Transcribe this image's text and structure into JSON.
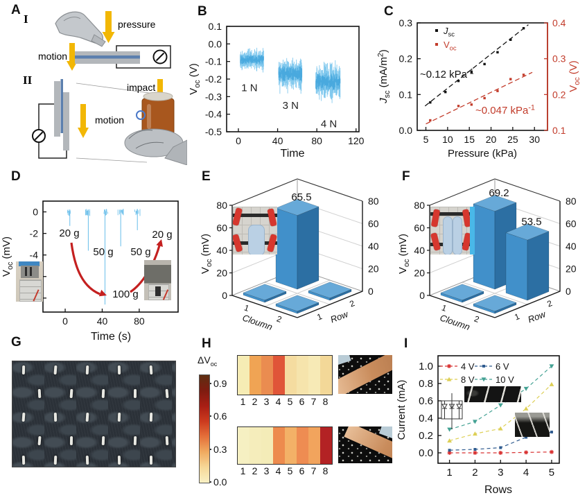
{
  "panels": {
    "A": {
      "letter": "A",
      "roman1": "I",
      "roman2": "II",
      "labels": {
        "pressure": "pressure",
        "motion_top": "motion",
        "motion_bottom": "motion",
        "impact": "impact"
      }
    },
    "B": {
      "letter": "B"
    },
    "C": {
      "letter": "C"
    },
    "D": {
      "letter": "D"
    },
    "E": {
      "letter": "E"
    },
    "F": {
      "letter": "F"
    },
    "G": {
      "letter": "G"
    },
    "H": {
      "letter": "H"
    },
    "I": {
      "letter": "I"
    }
  },
  "chart_data": [
    {
      "id": "B",
      "type": "line",
      "xlabel": "Time",
      "ylabel_parts": [
        {
          "t": "V"
        },
        {
          "t": "oc",
          "sub": true
        },
        {
          "t": " (V)"
        }
      ],
      "xlim": [
        -12,
        123
      ],
      "ylim": [
        0.1,
        -0.5
      ],
      "xticks": [
        "0",
        "40",
        "80",
        "120"
      ],
      "yticks": [
        "0.1",
        "0.0",
        "-0.1",
        "-0.2",
        "-0.3",
        "-0.4",
        "-0.5"
      ],
      "signal_color": "#74c3ec",
      "signal_core_color": "#3fa3da",
      "bursts": [
        {
          "t_start": 2,
          "t_end": 26,
          "mean": -0.09,
          "spread": 0.06,
          "label": "1 N",
          "label_t": 3,
          "label_v": -0.27
        },
        {
          "t_start": 41,
          "t_end": 65,
          "mean": -0.17,
          "spread": 0.1,
          "label": "3 N",
          "label_t": 45,
          "label_v": -0.37
        },
        {
          "t_start": 79,
          "t_end": 104,
          "mean": -0.215,
          "spread": 0.11,
          "label": "4 N",
          "label_t": 84,
          "label_v": -0.475
        }
      ]
    },
    {
      "id": "C",
      "type": "scatter",
      "xlabel": "Pressure (kPa)",
      "ylabel_left_parts": [
        {
          "t": "J",
          "i": true
        },
        {
          "t": "sc",
          "sub": true
        },
        {
          "t": " (mA/m"
        },
        {
          "t": "2",
          "sup": true
        },
        {
          "t": ")"
        }
      ],
      "ylabel_right_parts": [
        {
          "t": "V"
        },
        {
          "t": "oc",
          "sub": true
        },
        {
          "t": " (V)"
        }
      ],
      "right_color": "#c23b2a",
      "xlim": [
        3,
        33
      ],
      "xticks": [
        "5",
        "10",
        "15",
        "20",
        "25",
        "30"
      ],
      "ylim_left": [
        0.3,
        0.0
      ],
      "yticks_left": [
        "0.0",
        "0.1",
        "0.2",
        "0.3"
      ],
      "ylim_right": [
        0.4,
        0.1
      ],
      "yticks_right": [
        "0.1",
        "0.2",
        "0.3",
        "0.4"
      ],
      "legend": [
        {
          "parts": [
            {
              "t": "J",
              "i": true
            },
            {
              "t": "sc",
              "sub": true
            }
          ],
          "color": "#111111"
        },
        {
          "parts": [
            {
              "t": "V"
            },
            {
              "t": "oc",
              "sub": true
            }
          ],
          "color": "#c23b2a"
        }
      ],
      "series": [
        {
          "name": "Jsc",
          "axis": "left",
          "color": "#111111",
          "marker": "square",
          "x": [
            6,
            9.5,
            12.5,
            15.5,
            18.5,
            21.5,
            24.5,
            27.5
          ],
          "y": [
            0.078,
            0.107,
            0.138,
            0.163,
            0.185,
            0.218,
            0.253,
            0.285
          ],
          "fit": [
            [
              4.8,
              0.068
            ],
            [
              28.6,
              0.295
            ]
          ],
          "annotation_parts": [
            {
              "t": "~0.12 kPa"
            },
            {
              "t": "-1",
              "sup": true
            }
          ]
        },
        {
          "name": "Voc",
          "axis": "right",
          "color": "#c23b2a",
          "marker": "square",
          "x": [
            6,
            12.5,
            15.5,
            18.5,
            21.5,
            24.5,
            27.5
          ],
          "y": [
            0.128,
            0.168,
            0.172,
            0.19,
            0.21,
            0.243,
            0.255
          ],
          "fit": [
            [
              5,
              0.118
            ],
            [
              29.5,
              0.262
            ]
          ],
          "annotation_parts": [
            {
              "t": "~0.047 kPa"
            },
            {
              "t": "-1",
              "sup": true
            }
          ]
        }
      ]
    },
    {
      "id": "D",
      "type": "line",
      "xlabel": "Time (s)",
      "ylabel_parts": [
        {
          "t": "V"
        },
        {
          "t": "oc",
          "sub": true
        },
        {
          "t": " (mV)"
        }
      ],
      "xlim": [
        -24,
        122
      ],
      "ylim": [
        1.0,
        -9.3
      ],
      "xticks": [
        "0",
        "40",
        "80"
      ],
      "yticks": [
        "0",
        "-2",
        "-4",
        "-6",
        "-8"
      ],
      "signal_color": "#74c3ec",
      "arrow_color": "#c42020",
      "spikes": [
        {
          "t": 5,
          "depth": -1.3
        },
        {
          "t": 25,
          "depth": -3.6
        },
        {
          "t": 43,
          "depth": -8.6
        },
        {
          "t": 60,
          "depth": -3.2
        },
        {
          "t": 78,
          "depth": -1.7
        }
      ],
      "weights": [
        "20 g",
        "50 g",
        "100 g",
        "50 g",
        "20 g"
      ]
    },
    {
      "id": "E",
      "type": "bar3d",
      "zlabel_parts": [
        {
          "t": "V"
        },
        {
          "t": "oc",
          "sub": true
        },
        {
          "t": " (mV)"
        }
      ],
      "zlim": [
        0,
        80
      ],
      "zticks": [
        "0",
        "20",
        "40",
        "60",
        "80"
      ],
      "col_label": "Cloumn",
      "row_label": "Row",
      "col_ticks": [
        "1",
        "2"
      ],
      "row_ticks": [
        "1",
        "2"
      ],
      "bar_colors": {
        "front": "#4190ca",
        "side": "#2c6fa3",
        "top": "#67a9d8"
      },
      "bars": [
        {
          "column": 1,
          "row": 1,
          "value": 2,
          "label": ""
        },
        {
          "column": 2,
          "row": 1,
          "value": 2,
          "label": ""
        },
        {
          "column": 1,
          "row": 2,
          "value": 65.5,
          "label": "65.5"
        },
        {
          "column": 2,
          "row": 2,
          "value": 2,
          "label": ""
        }
      ]
    },
    {
      "id": "F",
      "type": "bar3d",
      "zlabel_parts": [
        {
          "t": "V"
        },
        {
          "t": "oc",
          "sub": true
        },
        {
          "t": " (mV)"
        }
      ],
      "zlim": [
        0,
        80
      ],
      "zticks": [
        "0",
        "20",
        "40",
        "60",
        "80"
      ],
      "col_label": "Cloumn",
      "row_label": "Row",
      "col_ticks": [
        "1",
        "2"
      ],
      "row_ticks": [
        "1",
        "2"
      ],
      "bar_colors": {
        "front": "#4190ca",
        "side": "#2c6fa3",
        "top": "#67a9d8"
      },
      "bars": [
        {
          "column": 1,
          "row": 1,
          "value": 2,
          "label": ""
        },
        {
          "column": 2,
          "row": 1,
          "value": 2,
          "label": ""
        },
        {
          "column": 1,
          "row": 2,
          "value": 69.2,
          "label": "69.2"
        },
        {
          "column": 2,
          "row": 2,
          "value": 53.5,
          "label": "53.5"
        }
      ]
    },
    {
      "id": "H",
      "type": "heatmap",
      "colorbar_label_main": "ΔV",
      "colorbar_label_sub": "oc",
      "colorbar_ticks": [
        "0.9",
        "0.6",
        "0.3",
        "0.0"
      ],
      "colorbar_colors_top_to_bottom": [
        "#5e2f12",
        "#7e1c10",
        "#a81e14",
        "#cc3a1e",
        "#e4703a",
        "#f0aa60",
        "#f6d898",
        "#f8f0c4"
      ],
      "cell_labels": [
        "1",
        "2",
        "3",
        "4",
        "5",
        "6",
        "7",
        "8"
      ],
      "strips": [
        {
          "values": [
            0.1,
            0.45,
            0.55,
            0.78,
            0.15,
            0.12,
            0.08,
            0.18
          ],
          "colors": [
            "#f6ecb4",
            "#f0a454",
            "#ea8c50",
            "#e05538",
            "#f5dca0",
            "#f6e4ac",
            "#f7eab6",
            "#f3d898"
          ]
        },
        {
          "values": [
            0.05,
            0.06,
            0.08,
            0.52,
            0.38,
            0.5,
            0.33,
            0.88
          ],
          "colors": [
            "#f6f0c2",
            "#f5edbb",
            "#f4ecb8",
            "#ed8b4e",
            "#f3b167",
            "#ee8c52",
            "#f2a45d",
            "#b32224"
          ]
        }
      ]
    },
    {
      "id": "I",
      "type": "line",
      "xlabel": "Rows",
      "ylabel": "Current (mA)",
      "xlim": [
        0.55,
        5.3
      ],
      "ylim": [
        1.12,
        -0.12
      ],
      "xticks": [
        "1",
        "2",
        "3",
        "4",
        "5"
      ],
      "yticks": [
        "0.0",
        "0.2",
        "0.4",
        "0.6",
        "0.8",
        "1.0"
      ],
      "x": [
        1,
        2,
        3,
        4,
        5
      ],
      "series": [
        {
          "name": "4 V",
          "color": "#d83030",
          "marker": "star",
          "values": [
            0.0,
            0.0,
            0.0,
            0.005,
            0.01
          ]
        },
        {
          "name": "6 V",
          "color": "#2f5b8f",
          "marker": "square",
          "values": [
            0.03,
            0.04,
            0.06,
            0.18,
            0.24
          ]
        },
        {
          "name": "8 V",
          "color": "#ddcf55",
          "marker": "triangle-up",
          "values": [
            0.14,
            0.22,
            0.28,
            0.51,
            0.79
          ]
        },
        {
          "name": "10 V",
          "color": "#43a193",
          "marker": "triangle-down",
          "values": [
            0.27,
            0.36,
            0.55,
            0.74,
            1.0
          ]
        }
      ]
    }
  ]
}
